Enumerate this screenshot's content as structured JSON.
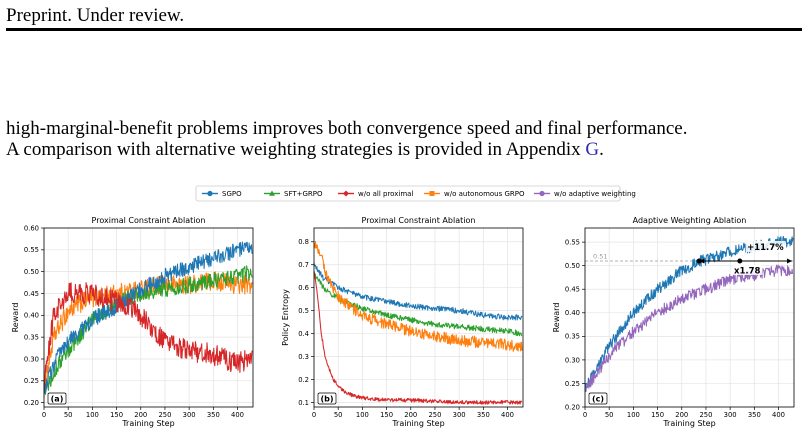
{
  "header": {
    "text": "Preprint. Under review."
  },
  "paragraph": {
    "line1": "high-marginal-benefit problems improves both convergence speed and final performance.",
    "line2_before": "A comparison with alternative weighting strategies is provided in Appendix ",
    "line2_link": "G",
    "line2_after": "."
  },
  "legend": [
    {
      "name": "SGPO",
      "color": "#1f77b4",
      "marker": "circle"
    },
    {
      "name": "SFT+GRPO",
      "color": "#2ca02c",
      "marker": "triangle"
    },
    {
      "name": "w/o all proximal",
      "color": "#d62728",
      "marker": "diamond"
    },
    {
      "name": "w/o autonomous GRPO",
      "color": "#ff7f0e",
      "marker": "square"
    },
    {
      "name": "w/o adaptive weighting",
      "color": "#9467bd",
      "marker": "circle"
    }
  ],
  "chart_data": [
    {
      "type": "line",
      "title": "Proximal Constraint Ablation",
      "xlabel": "Training Step",
      "ylabel": "Reward",
      "panel_label": "(a)",
      "xlim": [
        0,
        432
      ],
      "ylim": [
        0.19,
        0.6
      ],
      "xticks": [
        0,
        50,
        100,
        150,
        200,
        250,
        300,
        350,
        400
      ],
      "yticks": [
        0.2,
        0.25,
        0.3,
        0.35,
        0.4,
        0.45,
        0.5,
        0.55,
        0.6
      ],
      "ytick_labels": [
        "0.20",
        "0.25",
        "0.30",
        "0.35",
        "0.40",
        "0.45",
        "0.50",
        "0.55",
        "0.60"
      ],
      "grid": true,
      "series": [
        {
          "name": "w/o autonomous GRPO",
          "color": "#ff7f0e",
          "noise": 0.022,
          "x": [
            0,
            20,
            50,
            80,
            100,
            150,
            200,
            250,
            300,
            350,
            400,
            430
          ],
          "y": [
            0.23,
            0.35,
            0.41,
            0.43,
            0.44,
            0.45,
            0.46,
            0.47,
            0.47,
            0.48,
            0.47,
            0.47
          ]
        },
        {
          "name": "SFT+GRPO",
          "color": "#2ca02c",
          "noise": 0.018,
          "x": [
            0,
            25,
            50,
            100,
            150,
            200,
            250,
            300,
            350,
            400,
            430
          ],
          "y": [
            0.22,
            0.28,
            0.32,
            0.39,
            0.43,
            0.45,
            0.46,
            0.47,
            0.48,
            0.49,
            0.5
          ]
        },
        {
          "name": "SGPO",
          "color": "#1f77b4",
          "noise": 0.018,
          "x": [
            0,
            25,
            50,
            100,
            150,
            200,
            250,
            300,
            350,
            400,
            430
          ],
          "y": [
            0.23,
            0.3,
            0.34,
            0.39,
            0.42,
            0.46,
            0.49,
            0.51,
            0.53,
            0.55,
            0.55
          ]
        },
        {
          "name": "w/o all proximal",
          "color": "#d62728",
          "noise": 0.025,
          "x": [
            0,
            20,
            50,
            100,
            150,
            180,
            200,
            230,
            260,
            300,
            350,
            400,
            430
          ],
          "y": [
            0.24,
            0.4,
            0.45,
            0.45,
            0.43,
            0.42,
            0.4,
            0.36,
            0.33,
            0.32,
            0.31,
            0.29,
            0.3
          ]
        }
      ]
    },
    {
      "type": "line",
      "title": "Proximal Constraint Ablation",
      "xlabel": "Training Step",
      "ylabel": "Policy Entropy",
      "panel_label": "(b)",
      "xlim": [
        0,
        432
      ],
      "ylim": [
        0.08,
        0.86
      ],
      "xticks": [
        0,
        50,
        100,
        150,
        200,
        250,
        300,
        350,
        400
      ],
      "yticks": [
        0.1,
        0.2,
        0.3,
        0.4,
        0.5,
        0.6,
        0.7,
        0.8
      ],
      "ytick_labels": [
        "0.1",
        "0.2",
        "0.3",
        "0.4",
        "0.5",
        "0.6",
        "0.7",
        "0.8"
      ],
      "grid": true,
      "series": [
        {
          "name": "SGPO",
          "color": "#1f77b4",
          "noise": 0.012,
          "x": [
            0,
            20,
            50,
            100,
            150,
            200,
            250,
            300,
            350,
            400,
            430
          ],
          "y": [
            0.7,
            0.64,
            0.6,
            0.56,
            0.54,
            0.52,
            0.51,
            0.5,
            0.48,
            0.47,
            0.47
          ]
        },
        {
          "name": "SFT+GRPO",
          "color": "#2ca02c",
          "noise": 0.012,
          "x": [
            0,
            20,
            50,
            100,
            150,
            200,
            250,
            300,
            350,
            400,
            430
          ],
          "y": [
            0.66,
            0.6,
            0.55,
            0.51,
            0.48,
            0.46,
            0.44,
            0.43,
            0.42,
            0.41,
            0.4
          ]
        },
        {
          "name": "w/o autonomous GRPO",
          "color": "#ff7f0e",
          "noise": 0.025,
          "x": [
            0,
            15,
            30,
            50,
            100,
            150,
            200,
            250,
            300,
            350,
            400,
            430
          ],
          "y": [
            0.8,
            0.74,
            0.63,
            0.56,
            0.48,
            0.44,
            0.41,
            0.39,
            0.37,
            0.36,
            0.35,
            0.34
          ]
        },
        {
          "name": "w/o all proximal",
          "color": "#d62728",
          "noise": 0.008,
          "x": [
            0,
            8,
            15,
            25,
            40,
            60,
            80,
            100,
            150,
            200,
            300,
            430
          ],
          "y": [
            0.68,
            0.55,
            0.4,
            0.28,
            0.2,
            0.15,
            0.13,
            0.12,
            0.11,
            0.11,
            0.1,
            0.1
          ]
        }
      ]
    },
    {
      "type": "line",
      "title": "Adaptive Weighting Ablation",
      "xlabel": "Training Step",
      "ylabel": "Reward",
      "panel_label": "(c)",
      "xlim": [
        0,
        432
      ],
      "ylim": [
        0.2,
        0.58
      ],
      "xticks": [
        0,
        50,
        100,
        150,
        200,
        250,
        300,
        350,
        400
      ],
      "yticks": [
        0.2,
        0.25,
        0.3,
        0.35,
        0.4,
        0.45,
        0.5,
        0.55
      ],
      "ytick_labels": [
        "0.20",
        "0.25",
        "0.30",
        "0.35",
        "0.40",
        "0.45",
        "0.50",
        "0.55"
      ],
      "grid": true,
      "reference_value": 0.51,
      "reference_label": "0.51",
      "annotations": [
        "+11.7%",
        "x1.78"
      ],
      "series": [
        {
          "name": "SGPO",
          "color": "#1f77b4",
          "noise": 0.012,
          "x": [
            0,
            25,
            50,
            100,
            150,
            200,
            240,
            300,
            350,
            400,
            430
          ],
          "y": [
            0.24,
            0.28,
            0.33,
            0.4,
            0.45,
            0.49,
            0.51,
            0.53,
            0.54,
            0.55,
            0.55
          ]
        },
        {
          "name": "w/o adaptive weighting",
          "color": "#9467bd",
          "noise": 0.012,
          "x": [
            0,
            25,
            50,
            100,
            150,
            200,
            250,
            300,
            350,
            400,
            430
          ],
          "y": [
            0.24,
            0.27,
            0.31,
            0.36,
            0.4,
            0.43,
            0.45,
            0.47,
            0.48,
            0.49,
            0.49
          ]
        }
      ]
    }
  ]
}
